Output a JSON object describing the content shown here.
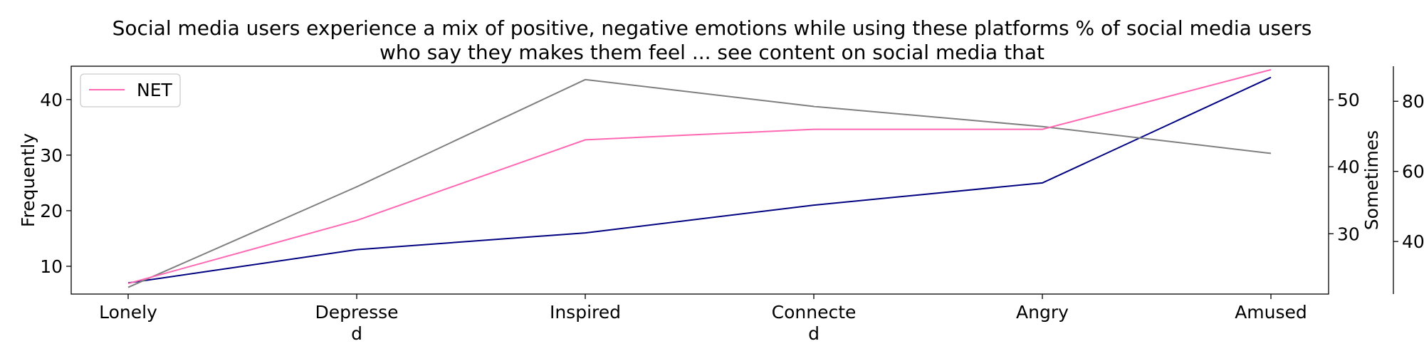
{
  "chart_data": {
    "type": "line",
    "title_lines": [
      "Social media users experience a mix of positive, negative emotions while using these platforms % of social media users",
      "who say they makes them feel ... see content on social media that"
    ],
    "categories": [
      [
        "Lonely"
      ],
      [
        "Depresse",
        "d"
      ],
      [
        "Inspired"
      ],
      [
        "Connecte",
        "d"
      ],
      [
        "Angry"
      ],
      [
        "Amused"
      ]
    ],
    "axes": {
      "left": {
        "label": "Frequently",
        "ylim": [
          5,
          46
        ],
        "ticks": [
          10,
          20,
          30,
          40
        ]
      },
      "right1": {
        "label": "Sometimes",
        "ylim": [
          21,
          55
        ],
        "ticks": [
          30,
          40,
          50
        ]
      },
      "right2": {
        "label": "",
        "ylim": [
          25,
          90
        ],
        "ticks": [
          40,
          60,
          80
        ]
      }
    },
    "series": [
      {
        "axis": "left",
        "color": "#000080",
        "values": [
          7,
          13,
          16,
          21,
          25,
          44
        ]
      },
      {
        "axis": "right1",
        "color": "#7f7f7f",
        "values": [
          22,
          37,
          53,
          49,
          46,
          42
        ]
      },
      {
        "name": "NET",
        "axis": "right2",
        "color": "#ff69b4",
        "values": [
          28,
          46,
          69,
          72,
          72,
          89
        ]
      }
    ],
    "legend": {
      "position": "top-left",
      "entries": [
        "NET"
      ]
    },
    "grid": false
  }
}
